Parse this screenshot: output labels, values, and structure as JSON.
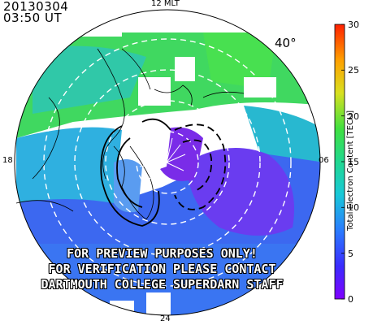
{
  "header": {
    "date": "20130304",
    "time": "03:50  UT"
  },
  "mlt_labels": {
    "top": "12 MLT",
    "left": "18",
    "right": "06",
    "bottom": "24"
  },
  "latitude_label": "40°",
  "watermark": [
    "FOR PREVIEW PURPOSES ONLY!",
    "FOR VERIFICATION PLEASE CONTACT",
    "DARTMOUTH COLLEGE SUPERDARN STAFF"
  ],
  "colorbar": {
    "title": "Total Electron Content [TECU]",
    "min": 0,
    "max": 30,
    "ticks": [
      "0",
      "5",
      "10",
      "15",
      "20",
      "25",
      "30"
    ]
  },
  "colors": {
    "green": "#3ee04a",
    "cyan": "#20c8c8",
    "blue": "#3c6cf0",
    "purple": "#7030f0",
    "violet": "#8a20e8"
  }
}
